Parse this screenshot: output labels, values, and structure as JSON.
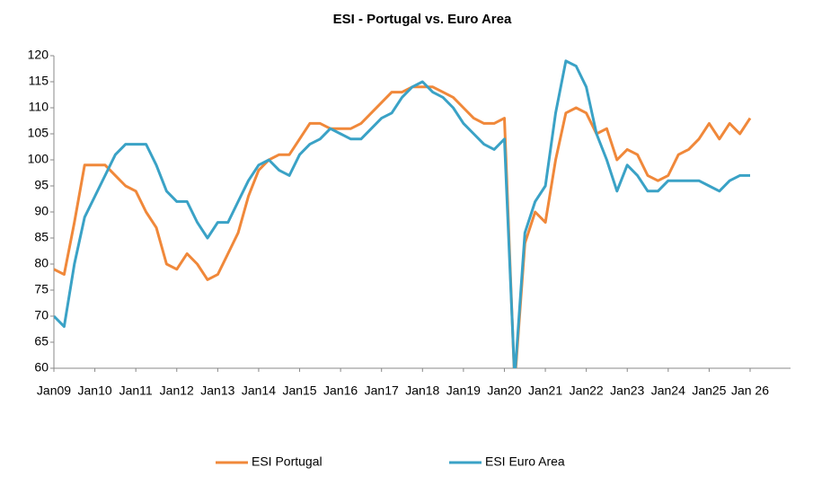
{
  "chart_data": {
    "type": "line",
    "title": "ESI  - Portugal vs. Euro Area",
    "categories": [
      "Jan09",
      null,
      null,
      null,
      "Jan10",
      null,
      null,
      null,
      "Jan11",
      null,
      null,
      null,
      "Jan12",
      null,
      null,
      null,
      "Jan13",
      null,
      null,
      null,
      "Jan14",
      null,
      null,
      null,
      "Jan15",
      null,
      null,
      null,
      "Jan16",
      null,
      null,
      null,
      "Jan17",
      null,
      null,
      null,
      "Jan18",
      null,
      null,
      null,
      "Jan19",
      null,
      null,
      null,
      "Jan20",
      null,
      null,
      null,
      "Jan21",
      null,
      null,
      null,
      "Jan22",
      null,
      null,
      null,
      "Jan23",
      null,
      null,
      null,
      "Jan24",
      null,
      null,
      null,
      "Jan25",
      null,
      null,
      null,
      "Jan 26"
    ],
    "series": [
      {
        "name": "ESI Portugal",
        "color": "#f0883a",
        "values": [
          79,
          78,
          88,
          99,
          99,
          99,
          97,
          95,
          94,
          90,
          87,
          80,
          79,
          82,
          80,
          77,
          78,
          82,
          86,
          93,
          98,
          100,
          101,
          101,
          104,
          107,
          107,
          106,
          106,
          106,
          107,
          109,
          111,
          113,
          113,
          114,
          114,
          114,
          113,
          112,
          110,
          108,
          107,
          107,
          108,
          57,
          84,
          90,
          88,
          100,
          109,
          110,
          109,
          105,
          106,
          100,
          102,
          101,
          97,
          96,
          97,
          101,
          102,
          104,
          107,
          104,
          107,
          105,
          108
        ]
      },
      {
        "name": "ESI Euro Area",
        "color": "#3aa2c6",
        "values": [
          70,
          68,
          80,
          89,
          93,
          97,
          101,
          103,
          103,
          103,
          99,
          94,
          92,
          92,
          88,
          85,
          88,
          88,
          92,
          96,
          99,
          100,
          98,
          97,
          101,
          103,
          104,
          106,
          105,
          104,
          104,
          106,
          108,
          109,
          112,
          114,
          115,
          113,
          112,
          110,
          107,
          105,
          103,
          102,
          104,
          58,
          86,
          92,
          95,
          109,
          119,
          118,
          114,
          105,
          100,
          94,
          99,
          97,
          94,
          94,
          96,
          96,
          96,
          96,
          95,
          94,
          96,
          97,
          97
        ]
      }
    ],
    "ylim": [
      60,
      120
    ],
    "yticks": [
      60,
      65,
      70,
      75,
      80,
      85,
      90,
      95,
      100,
      105,
      110,
      115,
      120
    ],
    "grid": false,
    "legend": "bottom"
  }
}
